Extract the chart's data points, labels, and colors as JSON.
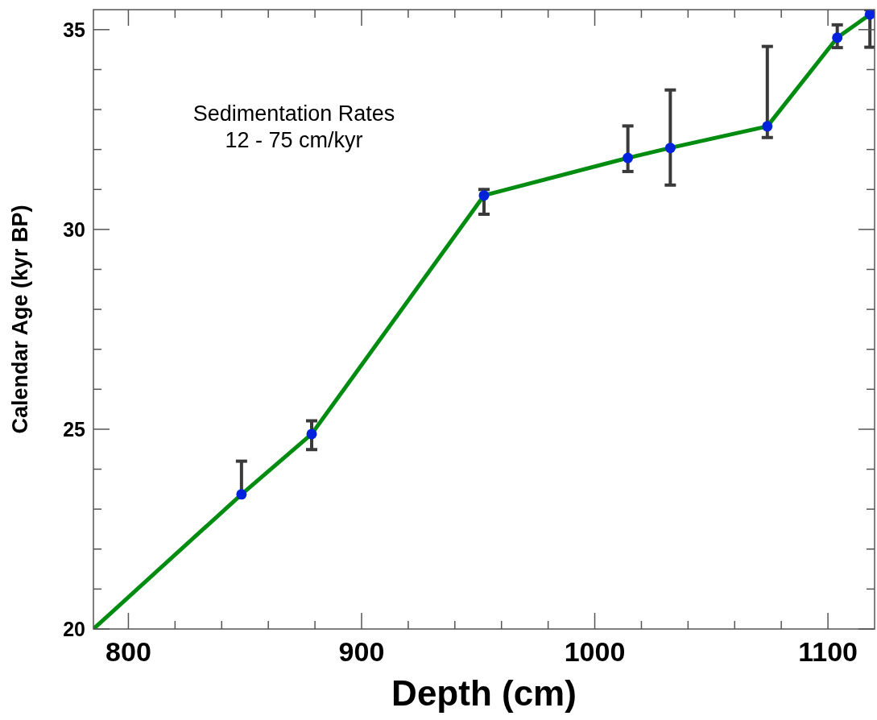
{
  "chart_data": {
    "type": "line",
    "xlabel": "Depth (cm)",
    "ylabel": "Calendar Age (kyr BP)",
    "annotations": [
      "Sedimentation Rates\n12 - 75 cm/kyr"
    ],
    "xlim": [
      785,
      1120
    ],
    "ylim": [
      20,
      35.5
    ],
    "xticks": [
      800,
      {
        "value": 820,
        "label": null
      },
      {
        "value": 840,
        "label": null
      },
      {
        "value": 860,
        "label": null
      },
      {
        "value": 880,
        "label": null
      },
      900,
      {
        "value": 920,
        "label": null
      },
      {
        "value": 940,
        "label": null
      },
      {
        "value": 960,
        "label": null
      },
      {
        "value": 980,
        "label": null
      },
      1000,
      {
        "value": 1020,
        "label": null
      },
      {
        "value": 1040,
        "label": null
      },
      {
        "value": 1060,
        "label": null
      },
      {
        "value": 1080,
        "label": null
      },
      1100
    ],
    "yticks": [
      20,
      {
        "value": 21,
        "label": null
      },
      {
        "value": 22,
        "label": null
      },
      {
        "value": 23,
        "label": null
      },
      {
        "value": 24,
        "label": null
      },
      25,
      {
        "value": 26,
        "label": null
      },
      {
        "value": 27,
        "label": null
      },
      {
        "value": 28,
        "label": null
      },
      {
        "value": 29,
        "label": null
      },
      30,
      {
        "value": 31,
        "label": null
      },
      {
        "value": 32,
        "label": null
      },
      {
        "value": 33,
        "label": null
      },
      {
        "value": 34,
        "label": null
      },
      35
    ],
    "grid": false,
    "series": [
      {
        "color": "#008c10",
        "marker": "none",
        "line_style": "solid",
        "x": [
          785,
          848.5,
          878.6,
          952.5,
          1014.2,
          1032.4,
          1074,
          1104,
          1118
        ],
        "values": [
          20,
          23.37,
          24.88,
          30.85,
          31.79,
          32.04,
          32.58,
          34.8,
          35.38
        ]
      },
      {
        "type": "scatter",
        "color": "#0022dd",
        "marker": "circle",
        "x": [
          848.5,
          878.6,
          952.5,
          1014.2,
          1032.4,
          1074,
          1104,
          1118
        ],
        "values": [
          23.37,
          24.88,
          30.85,
          31.79,
          32.04,
          32.58,
          34.8,
          35.38
        ],
        "errors": [
          [
            23.37,
            24.2
          ],
          [
            24.49,
            25.21
          ],
          [
            30.38,
            31.0
          ],
          [
            31.45,
            32.59
          ],
          [
            31.11,
            33.49
          ],
          [
            32.3,
            34.58
          ],
          [
            34.55,
            35.12
          ],
          [
            34.56,
            35.5
          ]
        ]
      }
    ]
  }
}
